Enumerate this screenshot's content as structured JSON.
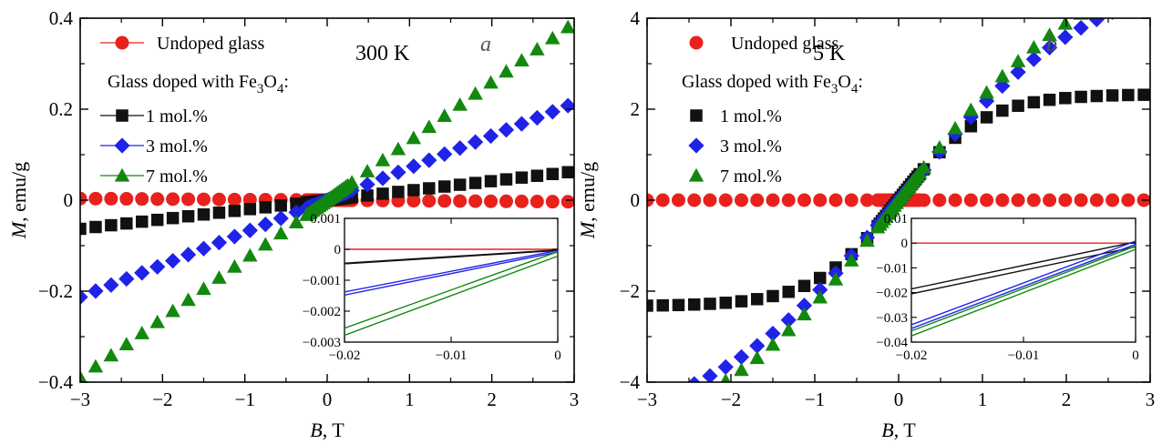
{
  "chart_data": [
    {
      "type": "scatter",
      "panel_letter": "a",
      "temperature": "300 K",
      "xlabel_var": "B",
      "xlabel_unit": ", T",
      "ylabel_var": "M",
      "ylabel_unit": ", emu/g",
      "xlim": [
        -3,
        3
      ],
      "ylim": [
        -0.4,
        0.4
      ],
      "x_ticks": [
        -3,
        -2,
        -1,
        0,
        1,
        2,
        3
      ],
      "x_tick_labels": [
        "−3",
        "−2",
        "−1",
        "0",
        "1",
        "2",
        "3"
      ],
      "y_ticks": [
        -0.4,
        -0.2,
        0,
        0.2,
        0.4
      ],
      "y_tick_labels": [
        "−0.4",
        "−0.2",
        "0",
        "0.2",
        "0.4"
      ],
      "legend": {
        "undoped": "Undoped glass",
        "doped_header_prefix": "Glass doped with Fe",
        "doped_header_sub1": "3",
        "doped_header_mid": "O",
        "doped_header_sub2": "4",
        "doped_header_suffix": ":"
      },
      "series": [
        {
          "name": "Undoped glass",
          "marker": "circle",
          "color": "#e8211c",
          "slope": -0.0012,
          "offset": 0.0
        },
        {
          "name": "1 mol.%",
          "marker": "square",
          "color": "#111111",
          "slope": 0.021,
          "offset": 0.0
        },
        {
          "name": "3 mol.%",
          "marker": "diamond",
          "color": "#1f23e8",
          "slope": 0.071,
          "offset": 0.0
        },
        {
          "name": "7 mol.%",
          "marker": "triangle",
          "color": "#13880f",
          "slope": 0.13,
          "offset": 0.0
        }
      ],
      "inset": {
        "xlim": [
          -0.02,
          0
        ],
        "ylim": [
          -0.003,
          0.001
        ],
        "x_ticks": [
          -0.02,
          -0.01,
          0
        ],
        "x_tick_labels": [
          "−0.02",
          "−0.01",
          "0"
        ],
        "y_ticks": [
          -0.003,
          -0.002,
          -0.001,
          0,
          0.001
        ],
        "y_tick_labels": [
          "−0.003",
          "−0.002",
          "−0.001",
          "0",
          "0.001"
        ],
        "lines": [
          {
            "color": "#e8211c",
            "y_at_xmin": 0.0,
            "y_at_0": 0.0
          },
          {
            "color": "#111111",
            "y_at_xmin": -0.00045,
            "y_at_0": -2e-05
          },
          {
            "color": "#111111",
            "y_at_xmin": -0.00047,
            "y_at_0": -4e-05
          },
          {
            "color": "#1f23e8",
            "y_at_xmin": -0.00138,
            "y_at_0": -4e-05
          },
          {
            "color": "#1f23e8",
            "y_at_xmin": -0.00148,
            "y_at_0": -9e-05
          },
          {
            "color": "#13880f",
            "y_at_xmin": -0.00255,
            "y_at_0": -8e-05
          },
          {
            "color": "#13880f",
            "y_at_xmin": -0.00278,
            "y_at_0": -0.00022
          }
        ]
      }
    },
    {
      "type": "scatter",
      "panel_letter": "b",
      "temperature": "5 K",
      "xlabel_var": "B",
      "xlabel_unit": ", T",
      "ylabel_var": "M",
      "ylabel_unit": ", emu/g",
      "xlim": [
        -3,
        3
      ],
      "ylim": [
        -4,
        4
      ],
      "x_ticks": [
        -3,
        -2,
        -1,
        0,
        1,
        2,
        3
      ],
      "x_tick_labels": [
        "−3",
        "−2",
        "−1",
        "0",
        "1",
        "2",
        "3"
      ],
      "y_ticks": [
        -4,
        -2,
        0,
        2,
        4
      ],
      "y_tick_labels": [
        "−4",
        "−2",
        "0",
        "2",
        "4"
      ],
      "legend": {
        "undoped": "Undoped glass",
        "doped_header_prefix": "Glass doped with Fe",
        "doped_header_sub1": "3",
        "doped_header_mid": "O",
        "doped_header_sub2": "4",
        "doped_header_suffix": ":"
      },
      "series": [
        {
          "name": "Undoped glass",
          "marker": "circle",
          "color": "#e8211c",
          "ms": 0.0,
          "chi0": 0.0,
          "B0": 1.0
        },
        {
          "name": "1 mol.%",
          "marker": "square",
          "color": "#111111",
          "ms": 2.33,
          "chi0": 0.0,
          "B0": 1.0
        },
        {
          "name": "3 mol.%",
          "marker": "diamond",
          "color": "#1f23e8",
          "ms": 5.2,
          "chi0": 0.0,
          "B0": 2.35
        },
        {
          "name": "7 mol.%",
          "marker": "triangle",
          "color": "#13880f",
          "ms": 5.6,
          "chi0": 0.0,
          "B0": 2.33
        }
      ],
      "inset": {
        "xlim": [
          -0.02,
          0
        ],
        "ylim": [
          -0.04,
          0.01
        ],
        "x_ticks": [
          -0.02,
          -0.01,
          0
        ],
        "x_tick_labels": [
          "−0.02",
          "−0.01",
          "0"
        ],
        "y_ticks": [
          -0.04,
          -0.03,
          -0.02,
          -0.01,
          0,
          0.01
        ],
        "y_tick_labels": [
          "−0.04",
          "−0.03",
          "−0.02",
          "−0.01",
          "0",
          "0.01"
        ],
        "lines": [
          {
            "color": "#e8211c",
            "y_at_xmin": 0.0,
            "y_at_0": 0.0
          },
          {
            "color": "#111111",
            "y_at_xmin": -0.0185,
            "y_at_0": 0.0005
          },
          {
            "color": "#111111",
            "y_at_xmin": -0.0205,
            "y_at_0": -0.0015
          },
          {
            "color": "#1f23e8",
            "y_at_xmin": -0.033,
            "y_at_0": 0.0008
          },
          {
            "color": "#1f23e8",
            "y_at_xmin": -0.0345,
            "y_at_0": -0.0005
          },
          {
            "color": "#13880f",
            "y_at_xmin": -0.0355,
            "y_at_0": -0.0012
          },
          {
            "color": "#13880f",
            "y_at_xmin": -0.0375,
            "y_at_0": -0.0025
          }
        ]
      }
    }
  ]
}
